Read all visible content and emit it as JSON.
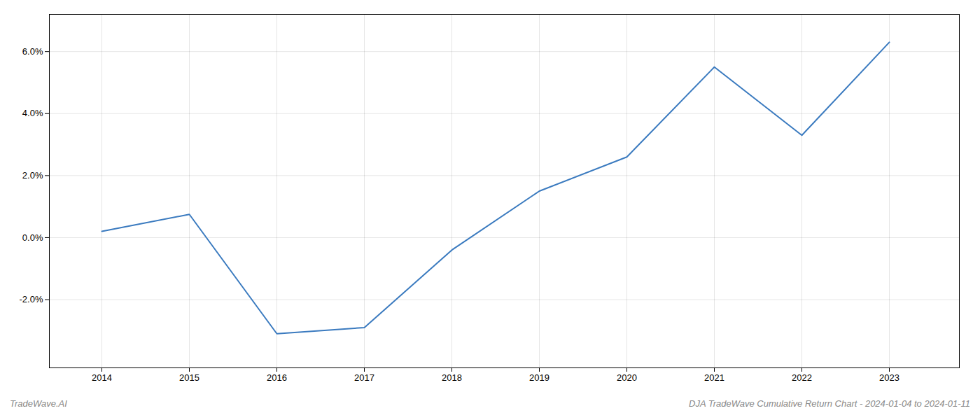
{
  "chart_data": {
    "type": "line",
    "x": [
      2014,
      2015,
      2016,
      2017,
      2018,
      2019,
      2020,
      2021,
      2022,
      2023
    ],
    "values": [
      0.2,
      0.75,
      -3.1,
      -2.9,
      -0.4,
      1.5,
      2.6,
      5.5,
      3.3,
      6.3
    ],
    "color": "#3a7abf",
    "xlim": [
      2013.4,
      2023.8
    ],
    "xticks": [
      2014,
      2015,
      2016,
      2017,
      2018,
      2019,
      2020,
      2021,
      2022,
      2023
    ],
    "ylim": [
      -4.2,
      7.2
    ],
    "yticks": [
      {
        "value": -2.0,
        "label": "-2.0%"
      },
      {
        "value": 0.0,
        "label": "0.0%"
      },
      {
        "value": 2.0,
        "label": "2.0%"
      },
      {
        "value": 4.0,
        "label": "4.0%"
      },
      {
        "value": 6.0,
        "label": "6.0%"
      }
    ],
    "grid": true,
    "annotations": [
      "TradeWave.AI",
      "DJA TradeWave Cumulative Return Chart - 2024-01-04 to 2024-01-11"
    ]
  }
}
